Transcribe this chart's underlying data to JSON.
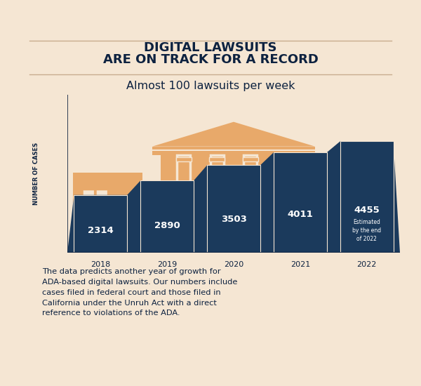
{
  "bg_color": "#f5e6d3",
  "title_line1": "DIGITAL LAWSUITS",
  "title_line2": "ARE ON TRACK FOR A RECORD",
  "title_color": "#0d2240",
  "subtitle": "Almost 100 lawsuits per week",
  "subtitle_color": "#0d2240",
  "years": [
    "2018",
    "2019",
    "2020",
    "2021",
    "2022"
  ],
  "values": [
    2314,
    2890,
    3503,
    4011,
    4455
  ],
  "bar_color_dark": "#1b3a5c",
  "building_color": "#e8a96a",
  "ylabel": "NUMBER OF CASES",
  "ylabel_color": "#0d2240",
  "footer_text": "The data predicts another year of growth for\nADA-based digital lawsuits. Our numbers include\ncases filed in federal court and those filed in\nCalifornia under the Unruh Act with a direct\nreference to violations of the ADA.",
  "footer_color": "#0d2240",
  "value_label_color": "#ffffff",
  "last_value_color": "#ffffff",
  "last_label_extra": "Estimated\nby the end\nof 2022",
  "hr_color": "#c8ad8f"
}
